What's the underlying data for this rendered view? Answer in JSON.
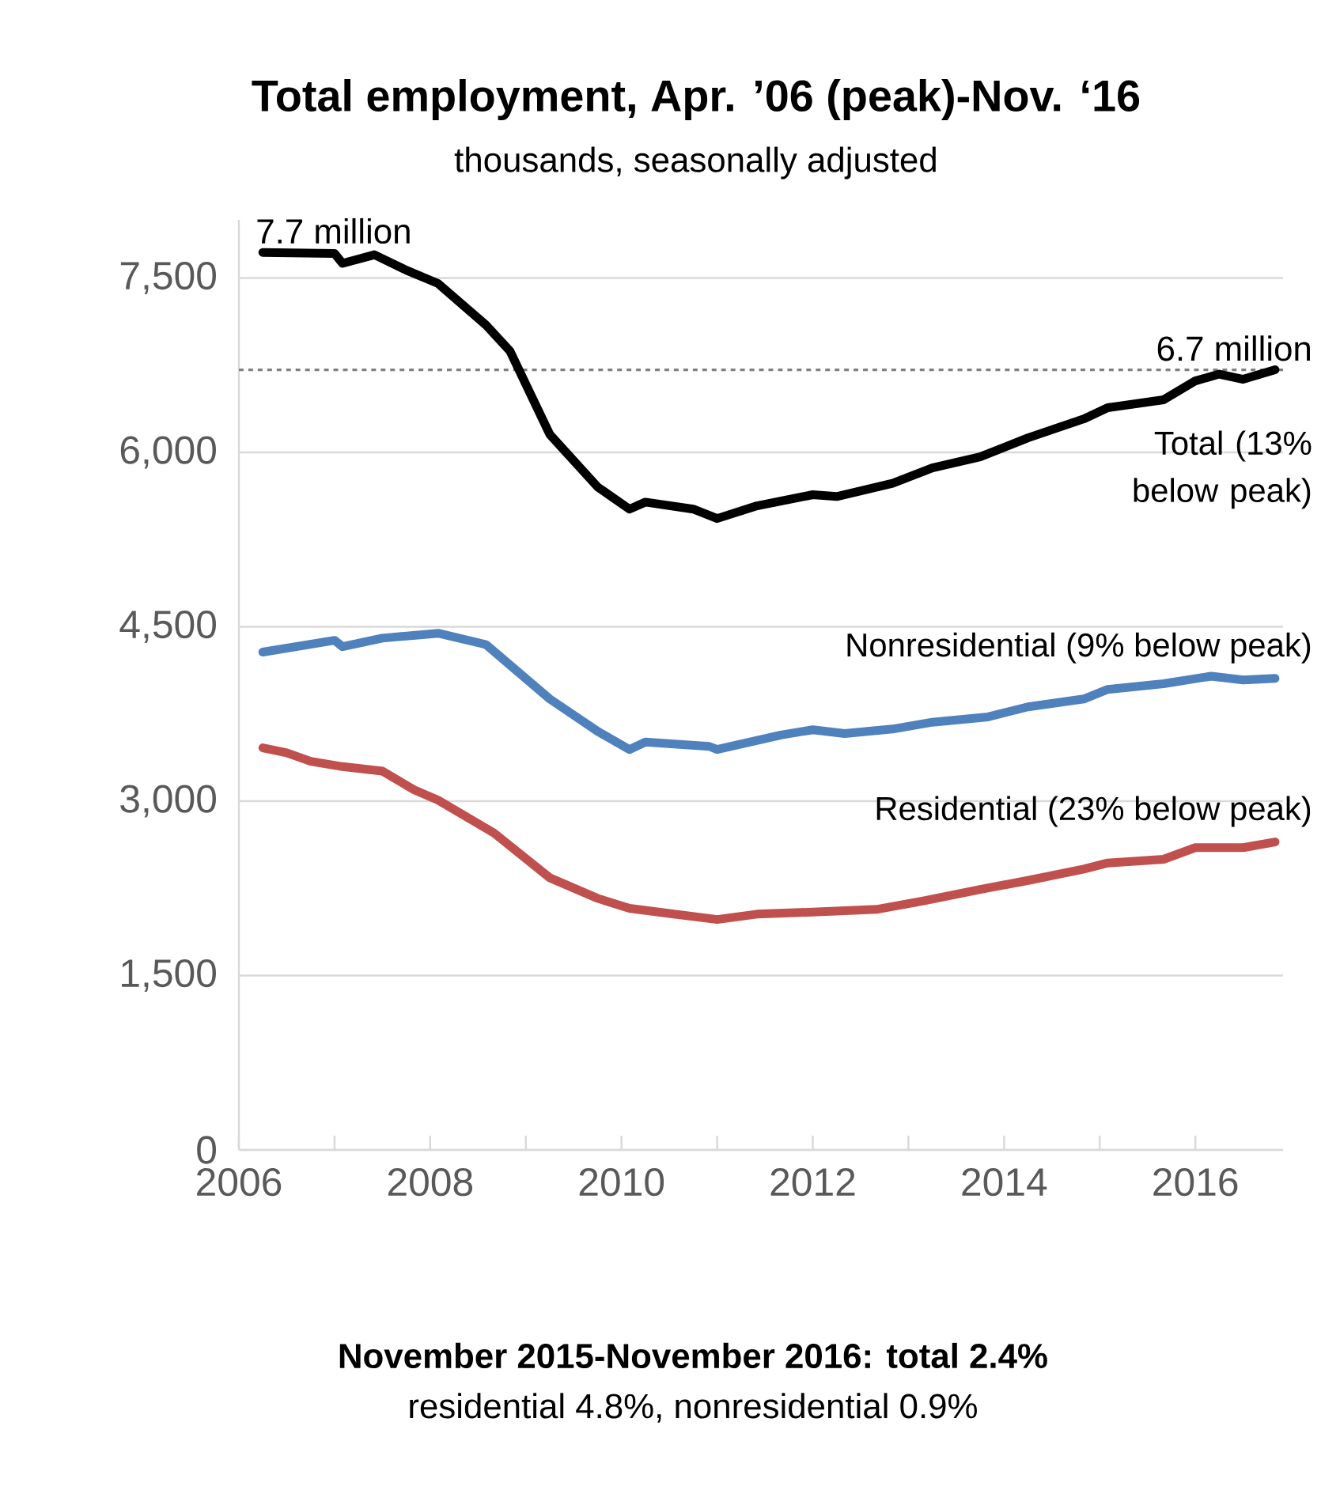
{
  "chart_data": {
    "type": "line",
    "title": "Total employment, Apr. ’06 (peak)-Nov. ‘16",
    "subtitle": "thousands, seasonally adjusted",
    "series": [
      {
        "name": "Total (13% below peak)",
        "color": "#000000",
        "x": [
          "2006-04",
          "2007-01",
          "2007-02",
          "2007-06",
          "2007-10",
          "2008-02",
          "2008-08",
          "2008-11",
          "2009-04",
          "2009-10",
          "2010-02",
          "2010-04",
          "2010-10",
          "2011-01",
          "2011-06",
          "2012-01",
          "2012-04",
          "2012-11",
          "2013-04",
          "2013-10",
          "2014-04",
          "2014-11",
          "2015-02",
          "2015-09",
          "2016-01",
          "2016-04",
          "2016-07",
          "2016-11"
        ],
        "values": [
          7720,
          7711,
          7626,
          7700,
          7567,
          7452,
          7095,
          6873,
          6155,
          5703,
          5512,
          5572,
          5512,
          5431,
          5540,
          5636,
          5620,
          5734,
          5866,
          5961,
          6125,
          6288,
          6384,
          6452,
          6615,
          6673,
          6629,
          6711
        ]
      },
      {
        "name": "Nonresidential (9% below peak)",
        "color": "#4f81bd",
        "x": [
          "2006-04",
          "2007-01",
          "2007-02",
          "2007-07",
          "2008-02",
          "2008-08",
          "2009-04",
          "2009-10",
          "2010-02",
          "2010-04",
          "2010-12",
          "2011-01",
          "2011-09",
          "2012-01",
          "2012-05",
          "2012-11",
          "2013-04",
          "2013-11",
          "2014-04",
          "2014-11",
          "2015-02",
          "2015-09",
          "2016-03",
          "2016-07",
          "2016-11"
        ],
        "values": [
          4282,
          4383,
          4329,
          4402,
          4444,
          4347,
          3879,
          3601,
          3444,
          3509,
          3471,
          3444,
          3569,
          3614,
          3582,
          3620,
          3679,
          3725,
          3811,
          3879,
          3961,
          4010,
          4075,
          4043,
          4056
        ]
      },
      {
        "name": "Residential (23% below peak)",
        "color": "#c0504d",
        "x": [
          "2006-04",
          "2006-07",
          "2006-10",
          "2007-02",
          "2007-07",
          "2007-11",
          "2008-02",
          "2008-09",
          "2009-04",
          "2009-10",
          "2010-02",
          "2010-07",
          "2011-01",
          "2011-06",
          "2012-01",
          "2012-09",
          "2013-03",
          "2013-10",
          "2014-04",
          "2014-11",
          "2015-02",
          "2015-09",
          "2016-01",
          "2016-07",
          "2016-11"
        ],
        "values": [
          3459,
          3416,
          3343,
          3297,
          3258,
          3097,
          3008,
          2726,
          2341,
          2164,
          2078,
          2034,
          1982,
          2028,
          2046,
          2069,
          2144,
          2240,
          2318,
          2416,
          2468,
          2500,
          2600,
          2600,
          2649
        ]
      }
    ],
    "xlim": [
      "2006-01",
      "2016-12"
    ],
    "xticks": [
      {
        "value": "2006",
        "label": "2006"
      },
      {
        "value": "2007",
        "label": null
      },
      {
        "value": "2008",
        "label": "2008"
      },
      {
        "value": "2009",
        "label": null
      },
      {
        "value": "2010",
        "label": "2010"
      },
      {
        "value": "2011",
        "label": null
      },
      {
        "value": "2012",
        "label": "2012"
      },
      {
        "value": "2013",
        "label": null
      },
      {
        "value": "2014",
        "label": "2014"
      },
      {
        "value": "2015",
        "label": null
      },
      {
        "value": "2016",
        "label": "2016"
      }
    ],
    "ylim": [
      0,
      8000
    ],
    "yticks": [
      {
        "value": 0,
        "label": "0"
      },
      {
        "value": 1500,
        "label": "1,500"
      },
      {
        "value": 3000,
        "label": "3,000"
      },
      {
        "value": 4500,
        "label": "4,500"
      },
      {
        "value": 6000,
        "label": "6,000"
      },
      {
        "value": 7500,
        "label": "7,500"
      }
    ],
    "grid": "y",
    "marker": "none",
    "line_style": "solid",
    "ref_lines": [
      {
        "axis": "y",
        "value": 6710,
        "color": "#808080",
        "line_style": "dashed"
      }
    ],
    "annotations": [
      {
        "text": "7.7 million",
        "x": "2006-04",
        "y": 7720
      },
      {
        "text": "6.7 million",
        "x": "2016-11",
        "y": 6711
      },
      "November 2015-November 2016: total 2.4%",
      "residential 4.8%, nonresidential 0.9%"
    ]
  }
}
